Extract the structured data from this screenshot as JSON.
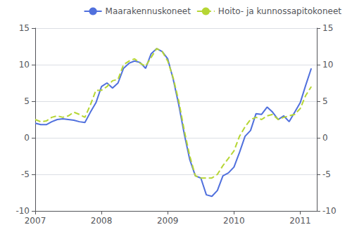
{
  "chart_data": {
    "type": "line",
    "x": [
      2007.0,
      2007.083,
      2007.167,
      2007.25,
      2007.333,
      2007.417,
      2007.5,
      2007.583,
      2007.667,
      2007.75,
      2007.833,
      2007.917,
      2008.0,
      2008.083,
      2008.167,
      2008.25,
      2008.333,
      2008.417,
      2008.5,
      2008.583,
      2008.667,
      2008.75,
      2008.833,
      2008.917,
      2009.0,
      2009.083,
      2009.167,
      2009.25,
      2009.333,
      2009.417,
      2009.5,
      2009.583,
      2009.667,
      2009.75,
      2009.833,
      2009.917,
      2010.0,
      2010.083,
      2010.167,
      2010.25,
      2010.333,
      2010.417,
      2010.5,
      2010.583,
      2010.667,
      2010.75,
      2010.833,
      2010.917,
      2011.0,
      2011.083,
      2011.167
    ],
    "series": [
      {
        "name": "Maarakennuskoneet",
        "line_style": "solid",
        "values": [
          2.0,
          1.8,
          1.8,
          2.2,
          2.5,
          2.6,
          2.5,
          2.4,
          2.2,
          2.1,
          3.5,
          4.8,
          7.0,
          7.5,
          6.8,
          7.5,
          9.5,
          10.2,
          10.5,
          10.3,
          9.5,
          11.5,
          12.2,
          11.8,
          10.8,
          8.0,
          4.5,
          0.5,
          -3.0,
          -5.2,
          -5.5,
          -7.8,
          -8.0,
          -7.2,
          -5.2,
          -4.8,
          -4.0,
          -2.0,
          0.2,
          1.0,
          3.3,
          3.2,
          4.2,
          3.5,
          2.5,
          3.0,
          2.2,
          3.5,
          4.8,
          7.2,
          9.5
        ]
      },
      {
        "name": "Hoito- ja kunnossapitokoneet",
        "line_style": "dashed",
        "values": [
          2.5,
          2.2,
          2.3,
          2.8,
          3.0,
          2.8,
          3.0,
          3.5,
          3.2,
          2.8,
          4.5,
          6.5,
          6.5,
          7.0,
          7.8,
          8.0,
          10.0,
          10.5,
          10.8,
          10.2,
          9.8,
          11.0,
          12.2,
          11.8,
          10.5,
          8.2,
          5.0,
          1.0,
          -2.5,
          -5.2,
          -5.5,
          -5.5,
          -5.5,
          -5.0,
          -3.8,
          -2.8,
          -1.8,
          0.2,
          1.5,
          2.5,
          2.8,
          2.5,
          3.0,
          3.2,
          2.5,
          2.8,
          3.0,
          3.2,
          4.0,
          5.8,
          7.0
        ]
      }
    ],
    "xlim": [
      2007.0,
      2011.25
    ],
    "xticks": [
      2007,
      2008,
      2009,
      2010,
      2011
    ],
    "ylim": [
      -10,
      15
    ],
    "yticks": [
      -10,
      -5,
      0,
      5,
      10,
      15
    ],
    "y2lim": [
      -10,
      15
    ],
    "y2ticks": [
      -10,
      -5,
      0,
      5,
      10,
      15
    ],
    "grid": true,
    "legend": "upper right"
  }
}
